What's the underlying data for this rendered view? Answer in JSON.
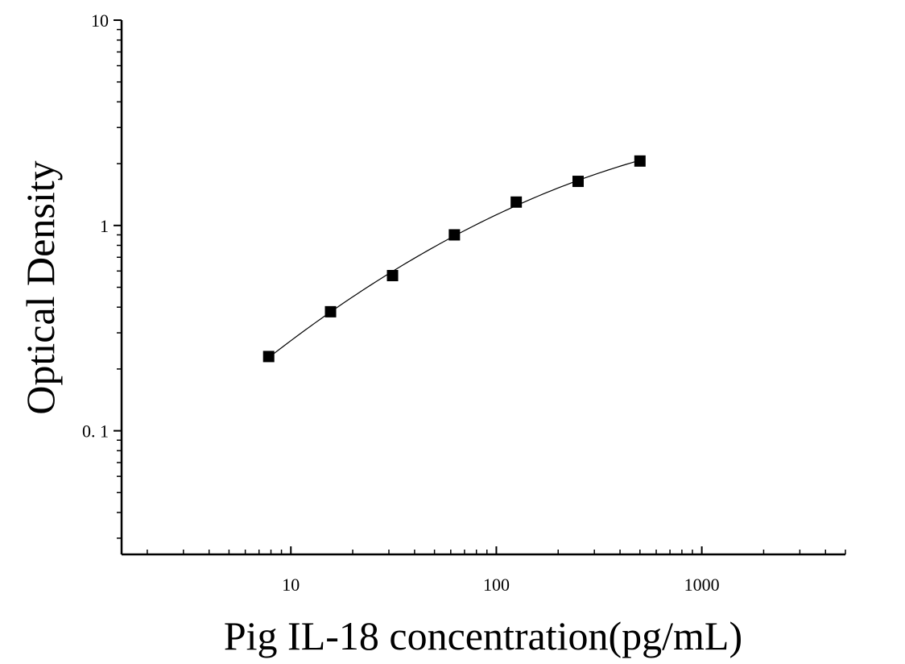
{
  "chart_data": {
    "type": "scatter",
    "xlabel": "Pig IL-18 concentration(pg/mL)",
    "ylabel": "Optical Density",
    "xscale": "log",
    "yscale": "log",
    "xlim": [
      1.5,
      5000
    ],
    "ylim": [
      0.025,
      10
    ],
    "x_ticks": [
      {
        "value": 10,
        "label": "10"
      },
      {
        "value": 100,
        "label": "100"
      },
      {
        "value": 1000,
        "label": "1000"
      }
    ],
    "y_ticks": [
      {
        "value": 10,
        "label": "10"
      },
      {
        "value": 1,
        "label": "1"
      },
      {
        "value": 0.1,
        "label": "0. 1"
      }
    ],
    "grid": false,
    "legend": false,
    "series": [
      {
        "marker": "square",
        "color": "#000000",
        "fit_line": true,
        "x": [
          7.8,
          15.6,
          31.25,
          62.5,
          125,
          250,
          500
        ],
        "y": [
          0.23,
          0.38,
          0.57,
          0.9,
          1.3,
          1.64,
          2.06
        ]
      }
    ]
  }
}
